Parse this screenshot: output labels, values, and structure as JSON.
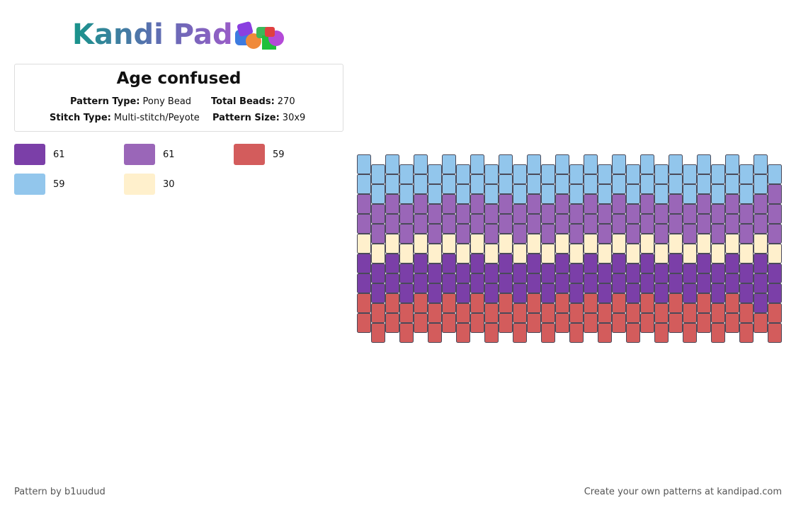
{
  "header": {
    "logo": "Kandi Pad"
  },
  "pattern": {
    "title": "Age confused",
    "info": [
      {
        "label": "Pattern Type:",
        "value": "Pony Bead"
      },
      {
        "label": "Total Beads:",
        "value": "270"
      },
      {
        "label": "Stitch Type:",
        "value": "Multi-stitch/Peyote"
      },
      {
        "label": "Pattern Size:",
        "value": "30x9"
      }
    ]
  },
  "palette": [
    {
      "color": "#7b3fa8",
      "count": "61"
    },
    {
      "color": "#9a66b8",
      "count": "61"
    },
    {
      "color": "#d35c5c",
      "count": "59"
    },
    {
      "color": "#92c6ec",
      "count": "59"
    },
    {
      "color": "#fff0cc",
      "count": "30"
    }
  ],
  "grid": {
    "columns": [
      [
        3,
        3,
        1,
        1,
        4,
        0,
        0,
        2,
        2
      ],
      [
        3,
        3,
        1,
        1,
        4,
        0,
        0,
        2,
        2
      ],
      [
        3,
        3,
        1,
        1,
        4,
        0,
        0,
        2,
        2
      ],
      [
        3,
        3,
        1,
        1,
        4,
        0,
        0,
        2,
        2
      ],
      [
        3,
        3,
        1,
        1,
        4,
        0,
        0,
        2,
        2
      ],
      [
        3,
        3,
        1,
        1,
        4,
        0,
        0,
        2,
        2
      ],
      [
        3,
        3,
        1,
        1,
        4,
        0,
        0,
        2,
        2
      ],
      [
        3,
        3,
        1,
        1,
        4,
        0,
        0,
        2,
        2
      ],
      [
        3,
        3,
        1,
        1,
        4,
        0,
        0,
        2,
        2
      ],
      [
        3,
        3,
        1,
        1,
        4,
        0,
        0,
        2,
        2
      ],
      [
        3,
        3,
        1,
        1,
        4,
        0,
        0,
        2,
        2
      ],
      [
        3,
        3,
        1,
        1,
        4,
        0,
        0,
        2,
        2
      ],
      [
        3,
        3,
        1,
        1,
        4,
        0,
        0,
        2,
        2
      ],
      [
        3,
        3,
        1,
        1,
        4,
        0,
        0,
        2,
        2
      ],
      [
        3,
        3,
        1,
        1,
        4,
        0,
        0,
        2,
        2
      ],
      [
        3,
        3,
        1,
        1,
        4,
        0,
        0,
        2,
        2
      ],
      [
        3,
        3,
        1,
        1,
        4,
        0,
        0,
        2,
        2
      ],
      [
        3,
        3,
        1,
        1,
        4,
        0,
        0,
        2,
        2
      ],
      [
        3,
        3,
        1,
        1,
        4,
        0,
        0,
        2,
        2
      ],
      [
        3,
        3,
        1,
        1,
        4,
        0,
        0,
        2,
        2
      ],
      [
        3,
        3,
        1,
        1,
        4,
        0,
        0,
        2,
        2
      ],
      [
        3,
        3,
        1,
        1,
        4,
        0,
        0,
        2,
        2
      ],
      [
        3,
        3,
        1,
        1,
        4,
        0,
        0,
        2,
        2
      ],
      [
        3,
        3,
        1,
        1,
        4,
        0,
        0,
        2,
        2
      ],
      [
        3,
        3,
        1,
        1,
        4,
        0,
        0,
        2,
        2
      ],
      [
        3,
        3,
        1,
        1,
        4,
        0,
        0,
        2,
        2
      ],
      [
        3,
        3,
        1,
        1,
        4,
        0,
        0,
        2,
        2
      ],
      [
        3,
        3,
        1,
        1,
        4,
        0,
        0,
        2,
        2
      ],
      [
        3,
        3,
        1,
        1,
        4,
        0,
        0,
        0,
        2
      ],
      [
        3,
        1,
        1,
        1,
        4,
        0,
        0,
        2,
        2
      ]
    ]
  },
  "footer": {
    "author": "Pattern by b1uudud",
    "site": "Create your own patterns at kandipad.com"
  }
}
